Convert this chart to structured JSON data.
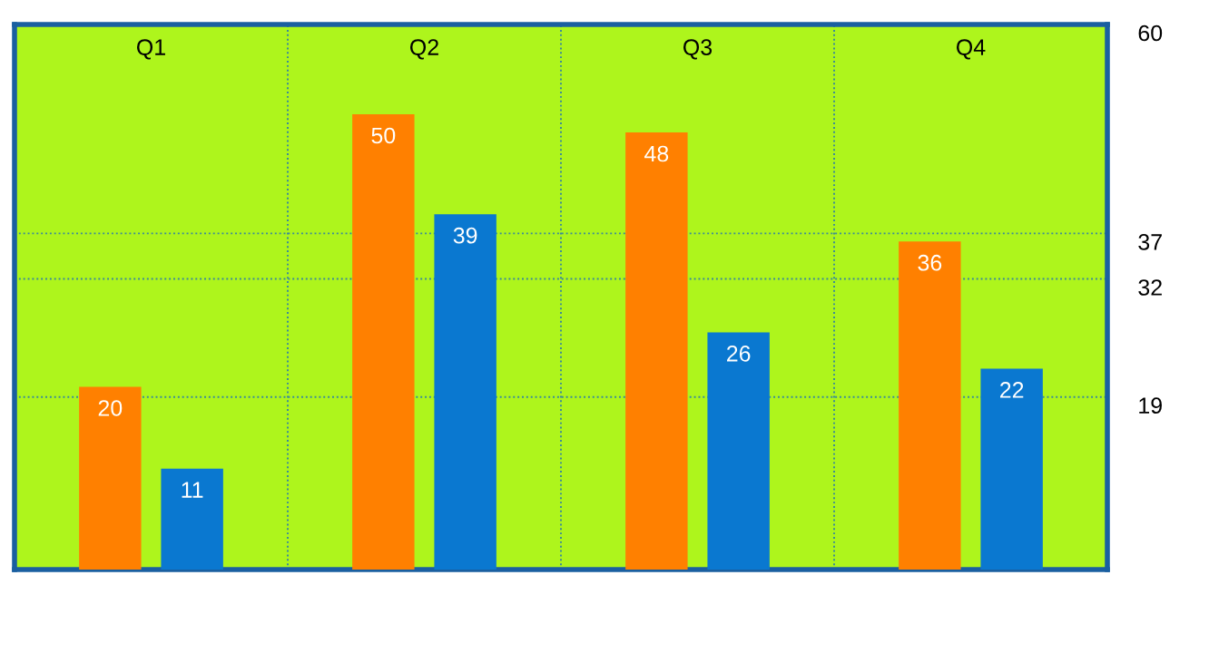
{
  "chart_data": {
    "type": "bar",
    "categories": [
      "Q1",
      "Q2",
      "Q3",
      "Q4"
    ],
    "series": [
      {
        "color": "#ff8000",
        "values": [
          20,
          50,
          48,
          36
        ]
      },
      {
        "color": "#0a78d0",
        "values": [
          11,
          39,
          26,
          22
        ]
      }
    ],
    "data_labels": true,
    "ylim": [
      0,
      60
    ],
    "yticks": [
      60,
      37,
      32,
      19
    ],
    "grid": true
  }
}
